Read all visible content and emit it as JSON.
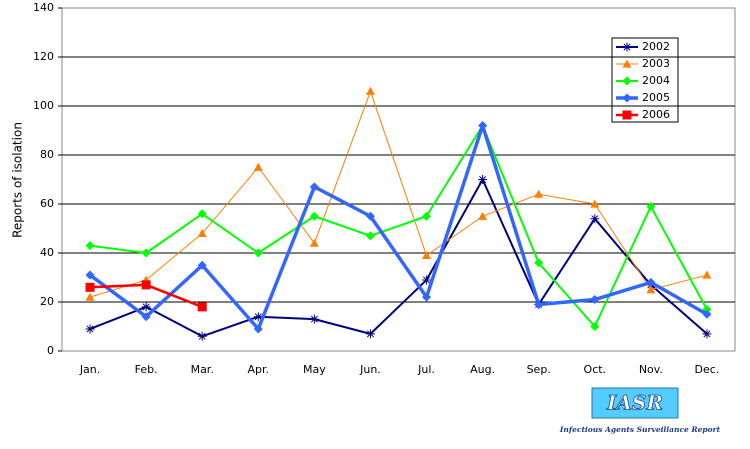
{
  "chart_data": {
    "type": "line",
    "y_label": "Reports of isolation",
    "categories": [
      "Jan.",
      "Feb.",
      "Mar.",
      "Apr.",
      "May",
      "Jun.",
      "Jul.",
      "Aug.",
      "Sep.",
      "Oct.",
      "Nov.",
      "Dec."
    ],
    "series": [
      {
        "name": "2002",
        "color": "#000080",
        "marker": "asterisk",
        "line_width": 2,
        "values": [
          9,
          18,
          6,
          14,
          13,
          7,
          29,
          70,
          19,
          54,
          27,
          7
        ]
      },
      {
        "name": "2003",
        "color": "#ff7f00",
        "marker": "triangle",
        "line_width": 1,
        "values": [
          22,
          29,
          48,
          75,
          44,
          106,
          39,
          55,
          64,
          60,
          25,
          31
        ]
      },
      {
        "name": "2004",
        "color": "#00ff00",
        "marker": "diamond",
        "line_width": 2,
        "values": [
          43,
          40,
          56,
          40,
          55,
          47,
          55,
          92,
          36,
          10,
          59,
          17
        ]
      },
      {
        "name": "2005",
        "color": "#3366ff",
        "marker": "diamond",
        "line_width": 3.5,
        "values": [
          31,
          14,
          35,
          9,
          67,
          55,
          22,
          92,
          19,
          21,
          28,
          15
        ]
      },
      {
        "name": "2006",
        "color": "#ff0000",
        "marker": "square",
        "line_width": 2.5,
        "values": [
          26,
          27,
          18,
          null,
          null,
          null,
          null,
          null,
          null,
          null,
          null,
          null
        ]
      }
    ],
    "ylim": [
      0,
      140
    ],
    "yticks": [
      0,
      20,
      40,
      60,
      80,
      100,
      120,
      140
    ],
    "grid": true,
    "legend": "upper right",
    "logo": "IASR",
    "logo_caption": "Infectious Agents Surveillance Report"
  }
}
